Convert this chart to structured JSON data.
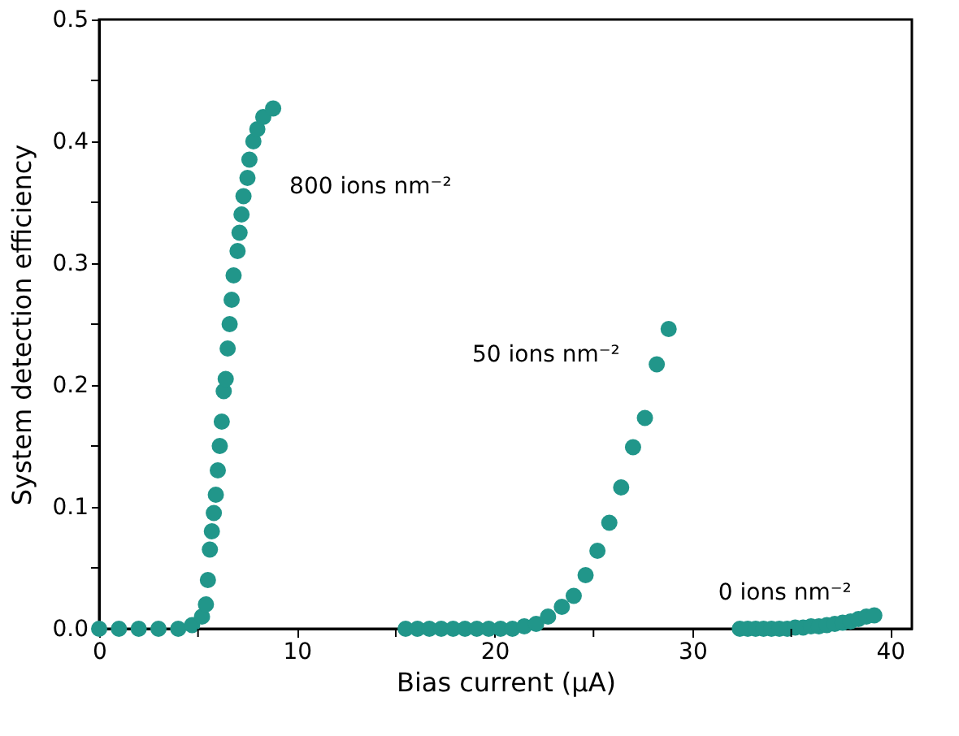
{
  "chart_data": {
    "type": "scatter",
    "xlabel": "Bias current (μA)",
    "ylabel": "System detection efficiency",
    "xlim": [
      0,
      41.1
    ],
    "ylim": [
      0,
      0.5
    ],
    "xticks": [
      0,
      {
        "value": 5,
        "label": null
      },
      10,
      {
        "value": 15,
        "label": null
      },
      20,
      {
        "value": 25,
        "label": null
      },
      30,
      {
        "value": 35,
        "label": null
      },
      40
    ],
    "yticks": [
      {
        "value": 0,
        "label": "0.0"
      },
      {
        "value": 0.05,
        "label": null
      },
      0.1,
      {
        "value": 0.15,
        "label": null
      },
      0.2,
      {
        "value": 0.25,
        "label": null
      },
      0.3,
      {
        "value": 0.35,
        "label": null
      },
      0.4,
      {
        "value": 0.45,
        "label": null
      },
      0.5
    ],
    "marker": "circle",
    "grid": false,
    "legend": false,
    "series": [
      {
        "name": "800 ions nm⁻²",
        "color": "#21968a",
        "x": [
          0,
          1,
          2,
          3,
          4,
          4.7,
          5.2,
          5.4,
          5.5,
          5.6,
          5.7,
          5.8,
          5.9,
          6.0,
          6.1,
          6.2,
          6.3,
          6.4,
          6.5,
          6.6,
          6.7,
          6.8,
          7.0,
          7.1,
          7.2,
          7.3,
          7.5,
          7.6,
          7.8,
          8.0,
          8.3,
          8.8
        ],
        "values": [
          0,
          0,
          0,
          0,
          0,
          0.003,
          0.01,
          0.02,
          0.04,
          0.065,
          0.08,
          0.095,
          0.11,
          0.13,
          0.15,
          0.17,
          0.195,
          0.205,
          0.23,
          0.25,
          0.27,
          0.29,
          0.31,
          0.325,
          0.34,
          0.355,
          0.37,
          0.385,
          0.4,
          0.41,
          0.42,
          0.427
        ]
      },
      {
        "name": "50 ions nm⁻²",
        "color": "#21968a",
        "x": [
          15.5,
          16.1,
          16.7,
          17.3,
          17.9,
          18.5,
          19.1,
          19.7,
          20.3,
          20.9,
          21.5,
          22.1,
          22.7,
          23.4,
          24.0,
          24.6,
          25.2,
          25.8,
          26.4,
          27.0,
          27.6,
          28.2,
          28.8
        ],
        "values": [
          0,
          0,
          0,
          0,
          0,
          0,
          0,
          0,
          0,
          0,
          0.002,
          0.004,
          0.01,
          0.018,
          0.027,
          0.044,
          0.064,
          0.087,
          0.116,
          0.149,
          0.173,
          0.217,
          0.246
        ]
      },
      {
        "name": "0 ions nm⁻²",
        "color": "#21968a",
        "x": [
          32.4,
          32.8,
          33.2,
          33.6,
          34.0,
          34.4,
          34.8,
          35.2,
          35.6,
          36.0,
          36.4,
          36.8,
          37.2,
          37.6,
          38.0,
          38.4,
          38.8,
          39.2
        ],
        "values": [
          0,
          0,
          0,
          0,
          0,
          0,
          0,
          0.001,
          0.001,
          0.002,
          0.002,
          0.003,
          0.004,
          0.005,
          0.006,
          0.008,
          0.01,
          0.011
        ]
      }
    ]
  }
}
